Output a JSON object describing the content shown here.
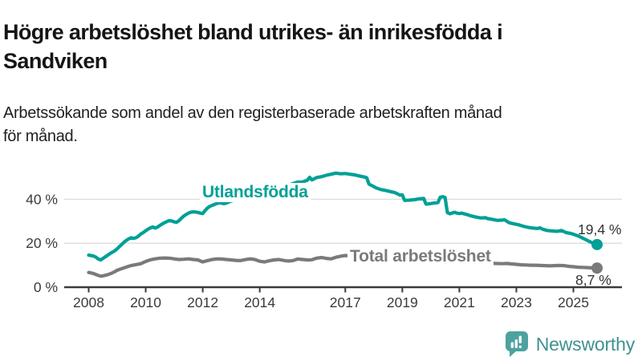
{
  "title": {
    "line1": "Högre arbetslöshet bland utrikes- än inrikesfödda i",
    "line2": "Sandviken"
  },
  "subtitle": {
    "line1": "Arbetssökande som andel av den registerbaserade arbetskraften månad",
    "line2": "för månad."
  },
  "branding": {
    "logo_text": "Newsworthy",
    "text_color": "#3f918f",
    "icon_color": "#4da2a0"
  },
  "chart_data": {
    "type": "line",
    "title": "Högre arbetslöshet bland utrikes- än inrikesfödda i Sandviken",
    "subtitle": "Arbetssökande som andel av den registerbaserade arbetskraften månad för månad.",
    "x_range": [
      2008,
      2025.83
    ],
    "y_range": [
      0,
      55
    ],
    "grid": "horizontal-only",
    "colors": {
      "grid": "#dcdcdc",
      "axis": "#3b3b3b",
      "tick_label": "#3b3b3b",
      "value_label": "#333333"
    },
    "x_ticks": [
      {
        "year": 2008,
        "label": "2008"
      },
      {
        "year": 2010,
        "label": "2010"
      },
      {
        "year": 2012,
        "label": "2012"
      },
      {
        "year": 2014,
        "label": "2014"
      },
      {
        "year": 2017,
        "label": "2017"
      },
      {
        "year": 2019,
        "label": "2019"
      },
      {
        "year": 2021,
        "label": "2021"
      },
      {
        "year": 2023,
        "label": "2023"
      },
      {
        "year": 2025,
        "label": "2025"
      }
    ],
    "y_ticks": [
      {
        "value": 0,
        "label": "0 %"
      },
      {
        "value": 20,
        "label": "20 %"
      },
      {
        "value": 40,
        "label": "40 %"
      }
    ],
    "series": [
      {
        "id": "utlandsfodda",
        "name": "Utlandsfödda",
        "color": "#00a096",
        "end_label": "19,4 %",
        "end_value": 19.4,
        "points": [
          [
            2008.0,
            14.6
          ],
          [
            2008.08,
            14.4
          ],
          [
            2008.17,
            14.2
          ],
          [
            2008.25,
            13.7
          ],
          [
            2008.33,
            12.9
          ],
          [
            2008.42,
            12.4
          ],
          [
            2008.5,
            13.1
          ],
          [
            2008.58,
            13.8
          ],
          [
            2008.67,
            14.6
          ],
          [
            2008.75,
            15.3
          ],
          [
            2008.83,
            15.9
          ],
          [
            2008.92,
            16.6
          ],
          [
            2009.0,
            17.5
          ],
          [
            2009.08,
            18.5
          ],
          [
            2009.17,
            19.6
          ],
          [
            2009.25,
            20.6
          ],
          [
            2009.33,
            21.4
          ],
          [
            2009.42,
            22.1
          ],
          [
            2009.5,
            22.5
          ],
          [
            2009.58,
            22.2
          ],
          [
            2009.67,
            22.6
          ],
          [
            2009.75,
            23.3
          ],
          [
            2009.83,
            24.2
          ],
          [
            2009.92,
            24.9
          ],
          [
            2010.0,
            25.7
          ],
          [
            2010.08,
            26.4
          ],
          [
            2010.17,
            27.0
          ],
          [
            2010.25,
            27.4
          ],
          [
            2010.33,
            26.9
          ],
          [
            2010.42,
            27.4
          ],
          [
            2010.5,
            28.1
          ],
          [
            2010.58,
            28.8
          ],
          [
            2010.67,
            29.4
          ],
          [
            2010.75,
            29.9
          ],
          [
            2010.83,
            30.3
          ],
          [
            2010.92,
            30.1
          ],
          [
            2011.0,
            29.7
          ],
          [
            2011.08,
            29.5
          ],
          [
            2011.17,
            30.3
          ],
          [
            2011.25,
            31.4
          ],
          [
            2011.33,
            32.3
          ],
          [
            2011.42,
            33.1
          ],
          [
            2011.5,
            33.7
          ],
          [
            2011.58,
            34.1
          ],
          [
            2011.67,
            34.3
          ],
          [
            2011.75,
            34.2
          ],
          [
            2011.83,
            34.0
          ],
          [
            2011.92,
            33.7
          ],
          [
            2012.0,
            33.5
          ],
          [
            2012.08,
            34.8
          ],
          [
            2012.17,
            36.1
          ],
          [
            2012.25,
            36.8
          ],
          [
            2012.33,
            37.2
          ],
          [
            2012.42,
            37.7
          ],
          [
            2012.5,
            38.1
          ],
          [
            2012.58,
            38.4
          ],
          [
            2012.67,
            38.2
          ],
          [
            2012.75,
            38.0
          ],
          [
            2012.83,
            38.3
          ],
          [
            2012.92,
            38.8
          ],
          [
            2013.0,
            39.2
          ],
          [
            2013.17,
            39.7
          ],
          [
            2013.33,
            40.2
          ],
          [
            2013.5,
            40.7
          ],
          [
            2013.67,
            41.1
          ],
          [
            2013.83,
            41.6
          ],
          [
            2014.0,
            42.0
          ],
          [
            2014.17,
            42.6
          ],
          [
            2014.33,
            43.2
          ],
          [
            2014.5,
            43.9
          ],
          [
            2014.67,
            44.6
          ],
          [
            2014.83,
            45.4
          ],
          [
            2015.0,
            46.3
          ],
          [
            2015.17,
            47.2
          ],
          [
            2015.33,
            47.8
          ],
          [
            2015.5,
            47.9
          ],
          [
            2015.67,
            48.7
          ],
          [
            2015.75,
            50.0
          ],
          [
            2015.83,
            48.8
          ],
          [
            2015.92,
            49.4
          ],
          [
            2016.0,
            49.9
          ],
          [
            2016.17,
            50.3
          ],
          [
            2016.33,
            50.9
          ],
          [
            2016.5,
            51.4
          ],
          [
            2016.67,
            51.9
          ],
          [
            2016.83,
            51.6
          ],
          [
            2017.0,
            51.7
          ],
          [
            2017.17,
            51.4
          ],
          [
            2017.33,
            51.1
          ],
          [
            2017.5,
            50.6
          ],
          [
            2017.67,
            50.1
          ],
          [
            2017.75,
            49.8
          ],
          [
            2017.83,
            46.9
          ],
          [
            2017.92,
            46.3
          ],
          [
            2018.08,
            45.2
          ],
          [
            2018.25,
            44.4
          ],
          [
            2018.42,
            44.0
          ],
          [
            2018.58,
            43.5
          ],
          [
            2018.75,
            43.0
          ],
          [
            2018.92,
            41.9
          ],
          [
            2019.0,
            42.0
          ],
          [
            2019.08,
            39.5
          ],
          [
            2019.25,
            39.6
          ],
          [
            2019.42,
            39.8
          ],
          [
            2019.58,
            40.2
          ],
          [
            2019.75,
            40.4
          ],
          [
            2019.83,
            37.8
          ],
          [
            2019.92,
            37.9
          ],
          [
            2020.08,
            38.2
          ],
          [
            2020.25,
            38.5
          ],
          [
            2020.33,
            40.9
          ],
          [
            2020.42,
            41.2
          ],
          [
            2020.5,
            40.8
          ],
          [
            2020.58,
            33.9
          ],
          [
            2020.67,
            33.4
          ],
          [
            2020.83,
            34.1
          ],
          [
            2020.92,
            33.7
          ],
          [
            2021.0,
            33.5
          ],
          [
            2021.08,
            33.7
          ],
          [
            2021.25,
            33.1
          ],
          [
            2021.42,
            32.4
          ],
          [
            2021.58,
            31.9
          ],
          [
            2021.75,
            31.5
          ],
          [
            2021.92,
            31.6
          ],
          [
            2022.0,
            31.2
          ],
          [
            2022.17,
            30.8
          ],
          [
            2022.33,
            30.4
          ],
          [
            2022.5,
            30.5
          ],
          [
            2022.58,
            30.7
          ],
          [
            2022.75,
            29.3
          ],
          [
            2022.92,
            28.8
          ],
          [
            2023.08,
            28.4
          ],
          [
            2023.25,
            27.7
          ],
          [
            2023.42,
            27.2
          ],
          [
            2023.58,
            26.9
          ],
          [
            2023.75,
            26.7
          ],
          [
            2023.83,
            27.0
          ],
          [
            2023.92,
            26.4
          ],
          [
            2024.08,
            25.8
          ],
          [
            2024.25,
            25.6
          ],
          [
            2024.42,
            25.4
          ],
          [
            2024.58,
            25.8
          ],
          [
            2024.75,
            24.8
          ],
          [
            2024.92,
            24.4
          ],
          [
            2025.0,
            24.1
          ],
          [
            2025.17,
            23.3
          ],
          [
            2025.33,
            22.3
          ],
          [
            2025.5,
            21.2
          ],
          [
            2025.67,
            20.1
          ],
          [
            2025.83,
            19.4
          ]
        ]
      },
      {
        "id": "total-arbetsloshet",
        "name": "Total arbetslöshet",
        "color": "#7a7a7a",
        "end_label": "8,7 %",
        "end_value": 8.7,
        "points": [
          [
            2008.0,
            6.7
          ],
          [
            2008.08,
            6.5
          ],
          [
            2008.17,
            6.2
          ],
          [
            2008.25,
            5.8
          ],
          [
            2008.33,
            5.4
          ],
          [
            2008.42,
            5.0
          ],
          [
            2008.5,
            5.2
          ],
          [
            2008.58,
            5.4
          ],
          [
            2008.67,
            5.7
          ],
          [
            2008.83,
            6.5
          ],
          [
            2008.92,
            7.1
          ],
          [
            2009.0,
            7.7
          ],
          [
            2009.17,
            8.5
          ],
          [
            2009.33,
            9.2
          ],
          [
            2009.5,
            9.9
          ],
          [
            2009.67,
            10.3
          ],
          [
            2009.83,
            10.7
          ],
          [
            2010.0,
            11.7
          ],
          [
            2010.17,
            12.5
          ],
          [
            2010.33,
            12.9
          ],
          [
            2010.5,
            13.2
          ],
          [
            2010.67,
            13.3
          ],
          [
            2010.83,
            13.2
          ],
          [
            2011.0,
            12.9
          ],
          [
            2011.17,
            12.6
          ],
          [
            2011.33,
            12.7
          ],
          [
            2011.5,
            12.9
          ],
          [
            2011.67,
            12.6
          ],
          [
            2011.83,
            12.4
          ],
          [
            2012.0,
            11.5
          ],
          [
            2012.17,
            12.1
          ],
          [
            2012.33,
            12.6
          ],
          [
            2012.5,
            12.9
          ],
          [
            2012.67,
            12.8
          ],
          [
            2012.83,
            12.6
          ],
          [
            2013.0,
            12.4
          ],
          [
            2013.17,
            12.2
          ],
          [
            2013.33,
            12.1
          ],
          [
            2013.5,
            12.6
          ],
          [
            2013.67,
            12.9
          ],
          [
            2013.83,
            12.6
          ],
          [
            2014.0,
            11.8
          ],
          [
            2014.17,
            11.5
          ],
          [
            2014.33,
            12.0
          ],
          [
            2014.5,
            12.4
          ],
          [
            2014.67,
            12.6
          ],
          [
            2014.83,
            12.2
          ],
          [
            2015.0,
            11.9
          ],
          [
            2015.17,
            12.1
          ],
          [
            2015.33,
            12.8
          ],
          [
            2015.5,
            12.6
          ],
          [
            2015.67,
            12.4
          ],
          [
            2015.83,
            12.5
          ],
          [
            2016.0,
            13.2
          ],
          [
            2016.17,
            13.5
          ],
          [
            2016.33,
            13.1
          ],
          [
            2016.5,
            12.9
          ],
          [
            2016.67,
            13.6
          ],
          [
            2016.83,
            14.1
          ],
          [
            2017.0,
            14.4
          ],
          [
            2017.25,
            14.2
          ],
          [
            2017.5,
            13.8
          ],
          [
            2017.75,
            13.4
          ],
          [
            2018.0,
            13.0
          ],
          [
            2018.33,
            12.6
          ],
          [
            2018.67,
            12.2
          ],
          [
            2019.0,
            11.9
          ],
          [
            2019.33,
            11.7
          ],
          [
            2019.67,
            11.6
          ],
          [
            2020.0,
            11.8
          ],
          [
            2020.33,
            12.5
          ],
          [
            2020.5,
            12.8
          ],
          [
            2020.75,
            12.6
          ],
          [
            2021.0,
            12.3
          ],
          [
            2021.33,
            11.9
          ],
          [
            2021.67,
            11.5
          ],
          [
            2022.0,
            11.1
          ],
          [
            2022.25,
            10.8
          ],
          [
            2022.5,
            10.7
          ],
          [
            2022.67,
            10.8
          ],
          [
            2022.83,
            10.6
          ],
          [
            2023.0,
            10.4
          ],
          [
            2023.17,
            10.2
          ],
          [
            2023.33,
            10.1
          ],
          [
            2023.5,
            10.0
          ],
          [
            2023.67,
            10.0
          ],
          [
            2023.83,
            9.9
          ],
          [
            2024.0,
            9.8
          ],
          [
            2024.17,
            9.7
          ],
          [
            2024.33,
            9.8
          ],
          [
            2024.5,
            9.9
          ],
          [
            2024.67,
            9.8
          ],
          [
            2024.83,
            9.5
          ],
          [
            2025.0,
            9.3
          ],
          [
            2025.17,
            9.1
          ],
          [
            2025.33,
            9.0
          ],
          [
            2025.5,
            8.9
          ],
          [
            2025.67,
            8.8
          ],
          [
            2025.83,
            8.7
          ]
        ]
      }
    ]
  }
}
